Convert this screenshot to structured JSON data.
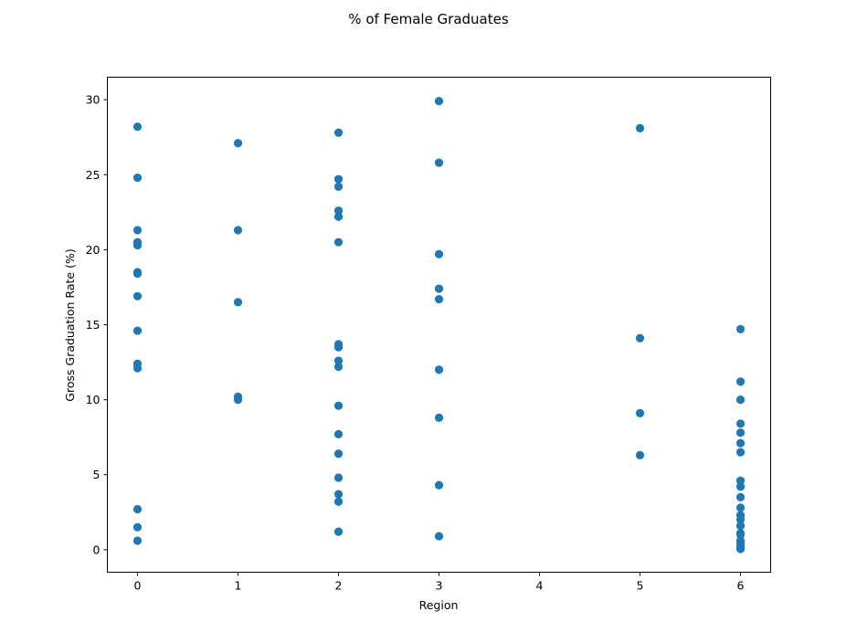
{
  "chart_data": {
    "type": "scatter",
    "title": "% of Female Graduates",
    "xlabel": "Region",
    "ylabel": "Gross Graduation Rate (%)",
    "xlim": [
      -0.3,
      6.3
    ],
    "ylim": [
      -1.5,
      31.5
    ],
    "xticks": [
      0,
      1,
      2,
      3,
      4,
      5,
      6
    ],
    "yticks": [
      0,
      5,
      10,
      15,
      20,
      25,
      30
    ],
    "grid": false,
    "color": "#1f77b4",
    "points": [
      {
        "x": 0,
        "y": 28.2
      },
      {
        "x": 0,
        "y": 24.8
      },
      {
        "x": 0,
        "y": 21.3
      },
      {
        "x": 0,
        "y": 20.5
      },
      {
        "x": 0,
        "y": 20.3
      },
      {
        "x": 0,
        "y": 18.5
      },
      {
        "x": 0,
        "y": 18.4
      },
      {
        "x": 0,
        "y": 16.9
      },
      {
        "x": 0,
        "y": 14.6
      },
      {
        "x": 0,
        "y": 12.4
      },
      {
        "x": 0,
        "y": 12.1
      },
      {
        "x": 0,
        "y": 2.7
      },
      {
        "x": 0,
        "y": 1.5
      },
      {
        "x": 0,
        "y": 0.6
      },
      {
        "x": 1,
        "y": 27.1
      },
      {
        "x": 1,
        "y": 21.3
      },
      {
        "x": 1,
        "y": 16.5
      },
      {
        "x": 1,
        "y": 10.2
      },
      {
        "x": 1,
        "y": 10.0
      },
      {
        "x": 2,
        "y": 27.8
      },
      {
        "x": 2,
        "y": 24.7
      },
      {
        "x": 2,
        "y": 24.2
      },
      {
        "x": 2,
        "y": 22.6
      },
      {
        "x": 2,
        "y": 22.2
      },
      {
        "x": 2,
        "y": 20.5
      },
      {
        "x": 2,
        "y": 13.7
      },
      {
        "x": 2,
        "y": 13.5
      },
      {
        "x": 2,
        "y": 12.6
      },
      {
        "x": 2,
        "y": 12.2
      },
      {
        "x": 2,
        "y": 9.6
      },
      {
        "x": 2,
        "y": 7.7
      },
      {
        "x": 2,
        "y": 6.4
      },
      {
        "x": 2,
        "y": 4.8
      },
      {
        "x": 2,
        "y": 3.7
      },
      {
        "x": 2,
        "y": 3.2
      },
      {
        "x": 2,
        "y": 1.2
      },
      {
        "x": 3,
        "y": 29.9
      },
      {
        "x": 3,
        "y": 25.8
      },
      {
        "x": 3,
        "y": 19.7
      },
      {
        "x": 3,
        "y": 17.4
      },
      {
        "x": 3,
        "y": 16.7
      },
      {
        "x": 3,
        "y": 12.0
      },
      {
        "x": 3,
        "y": 8.8
      },
      {
        "x": 3,
        "y": 4.3
      },
      {
        "x": 3,
        "y": 0.9
      },
      {
        "x": 5,
        "y": 28.1
      },
      {
        "x": 5,
        "y": 14.1
      },
      {
        "x": 5,
        "y": 9.1
      },
      {
        "x": 5,
        "y": 6.3
      },
      {
        "x": 6,
        "y": 14.7
      },
      {
        "x": 6,
        "y": 11.2
      },
      {
        "x": 6,
        "y": 10.0
      },
      {
        "x": 6,
        "y": 8.4
      },
      {
        "x": 6,
        "y": 7.8
      },
      {
        "x": 6,
        "y": 7.1
      },
      {
        "x": 6,
        "y": 6.5
      },
      {
        "x": 6,
        "y": 4.6
      },
      {
        "x": 6,
        "y": 4.2
      },
      {
        "x": 6,
        "y": 3.5
      },
      {
        "x": 6,
        "y": 2.8
      },
      {
        "x": 6,
        "y": 2.3
      },
      {
        "x": 6,
        "y": 2.0
      },
      {
        "x": 6,
        "y": 1.6
      },
      {
        "x": 6,
        "y": 1.1
      },
      {
        "x": 6,
        "y": 1.0
      },
      {
        "x": 6,
        "y": 0.6
      },
      {
        "x": 6,
        "y": 0.4
      },
      {
        "x": 6,
        "y": 0.2
      },
      {
        "x": 6,
        "y": 0.05
      }
    ]
  }
}
